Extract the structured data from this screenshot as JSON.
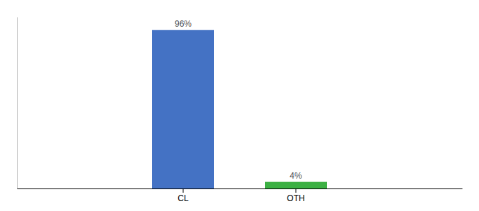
{
  "chart_data": {
    "type": "bar",
    "categories": [
      "CL",
      "OTH"
    ],
    "values": [
      96,
      4
    ],
    "value_labels": [
      "96%",
      "4%"
    ],
    "colors": [
      "#4472c4",
      "#3cb043"
    ],
    "ylim": [
      0,
      104
    ],
    "data_labels": true,
    "tick_labels": "x",
    "grid": false
  }
}
